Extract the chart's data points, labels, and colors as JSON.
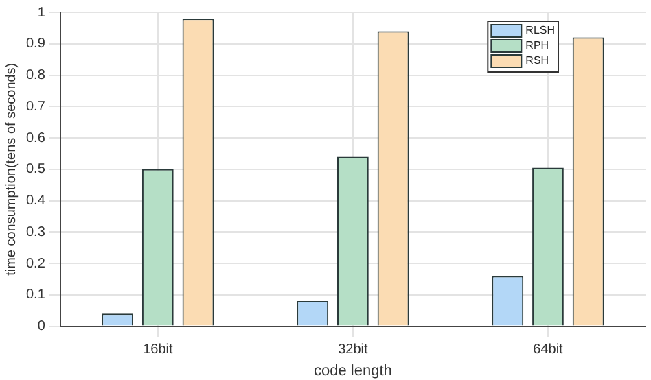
{
  "chart_data": {
    "type": "bar",
    "xlabel": "code length",
    "ylabel": "time consumption(tens of seconds)",
    "categories": [
      "16bit",
      "32bit",
      "64bit"
    ],
    "series": [
      {
        "name": "RLSH",
        "color": "#b3d7f7",
        "values": [
          0.04,
          0.08,
          0.16
        ]
      },
      {
        "name": "RPH",
        "color": "#b5dfc6",
        "values": [
          0.5,
          0.54,
          0.505
        ]
      },
      {
        "name": "RSH",
        "color": "#fbdcb3",
        "values": [
          0.98,
          0.94,
          0.92
        ]
      }
    ],
    "ylim": [
      0,
      1
    ],
    "yticks": [
      0,
      0.1,
      0.2,
      0.3,
      0.4,
      0.5,
      0.6,
      0.7,
      0.8,
      0.9,
      1
    ],
    "grid": true,
    "legend": "top right"
  }
}
